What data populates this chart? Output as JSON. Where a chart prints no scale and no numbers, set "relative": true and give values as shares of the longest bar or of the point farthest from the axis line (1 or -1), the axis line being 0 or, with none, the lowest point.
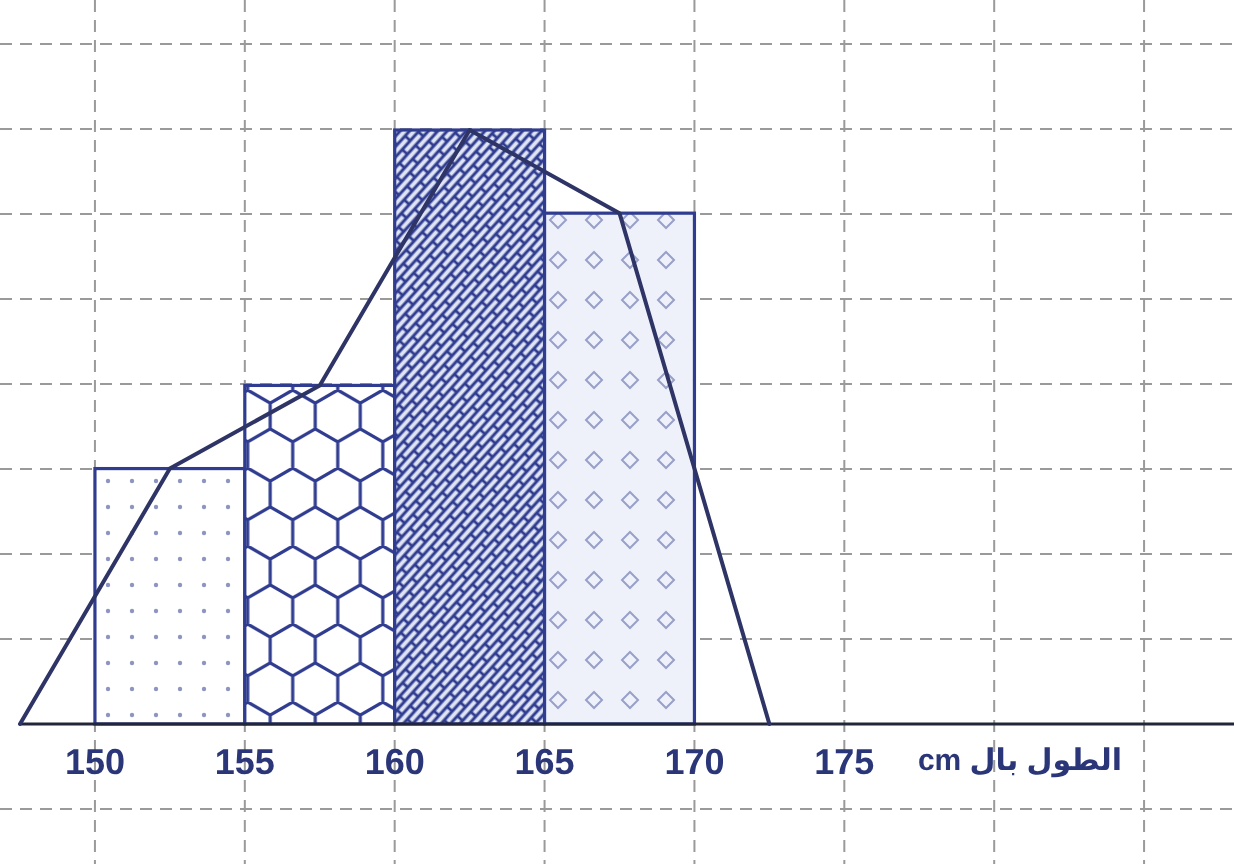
{
  "chart_data": {
    "type": "histogram",
    "relative": true,
    "xlabel": "الطول بال cm",
    "xlim": [
      147.5,
      188
    ],
    "xticks": [
      150,
      155,
      160,
      165,
      170,
      175,
      {
        "value": 180,
        "label": null
      },
      {
        "value": 185,
        "label": null
      }
    ],
    "grid": true,
    "series": [
      {
        "bins": [
          150,
          155,
          160,
          165,
          170
        ],
        "values": [
          0.43,
          0.57,
          1,
          0.86
        ],
        "color": "#2f3c8f"
      },
      {
        "type": "line",
        "x": [
          147.5,
          152.5,
          157.5,
          162.5,
          167.5,
          172.5
        ],
        "values": [
          0,
          0.43,
          0.57,
          1,
          0.86,
          0
        ],
        "color": "#2e3566"
      }
    ]
  }
}
